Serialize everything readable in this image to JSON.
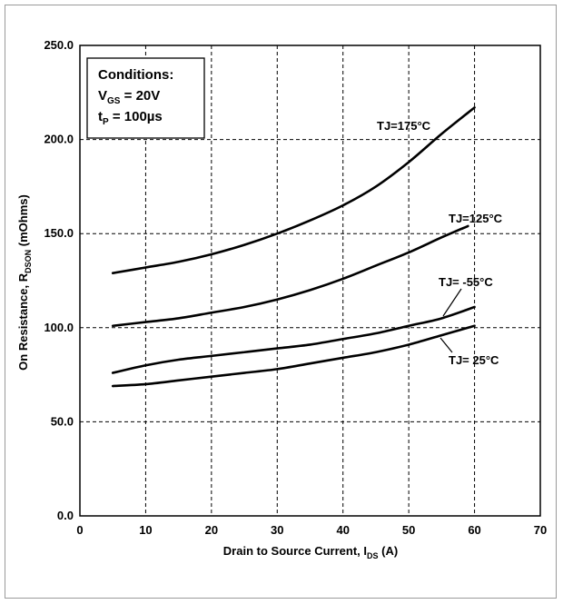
{
  "chart_data": {
    "type": "line",
    "title": "",
    "xlabel": "Drain to Source Current, I",
    "xlabel_sub": "DS",
    "xlabel_suffix": " (A)",
    "ylabel": "On Resistance, R",
    "ylabel_sub": "DSON",
    "ylabel_suffix": " (mOhms)",
    "xlim": [
      0,
      70
    ],
    "ylim": [
      0,
      250
    ],
    "xticks": [
      "0",
      "10",
      "20",
      "30",
      "40",
      "50",
      "60",
      "70"
    ],
    "yticks": [
      "0.0",
      "50.0",
      "100.0",
      "150.0",
      "200.0",
      "250.0"
    ],
    "grid": true,
    "conditions": {
      "title": "Conditions:",
      "line1_main": "V",
      "line1_sub": "GS",
      "line1_rest": " = 20V",
      "line2_main": "t",
      "line2_sub": "P",
      "line2_rest": " = 100µs"
    },
    "series": [
      {
        "name": "TJ=175°C",
        "x": [
          5,
          10,
          15,
          20,
          25,
          30,
          35,
          40,
          45,
          50,
          55,
          60
        ],
        "y": [
          129,
          132,
          135,
          139,
          144,
          150,
          157,
          165,
          175,
          188,
          203,
          217
        ]
      },
      {
        "name": "TJ=125°C",
        "x": [
          5,
          10,
          15,
          20,
          25,
          30,
          35,
          40,
          45,
          50,
          55,
          59
        ],
        "y": [
          101,
          103,
          105,
          108,
          111,
          115,
          120,
          126,
          133,
          140,
          148,
          154
        ]
      },
      {
        "name": "TJ= -55°C",
        "x": [
          5,
          10,
          15,
          20,
          25,
          30,
          35,
          40,
          45,
          50,
          55,
          60
        ],
        "y": [
          76,
          80,
          83,
          85,
          87,
          89,
          91,
          94,
          97,
          101,
          105,
          111
        ]
      },
      {
        "name": "TJ= 25°C",
        "x": [
          5,
          10,
          15,
          20,
          25,
          30,
          35,
          40,
          45,
          50,
          55,
          60
        ],
        "y": [
          69,
          70,
          72,
          74,
          76,
          78,
          81,
          84,
          87,
          91,
          96,
          101
        ]
      }
    ]
  }
}
